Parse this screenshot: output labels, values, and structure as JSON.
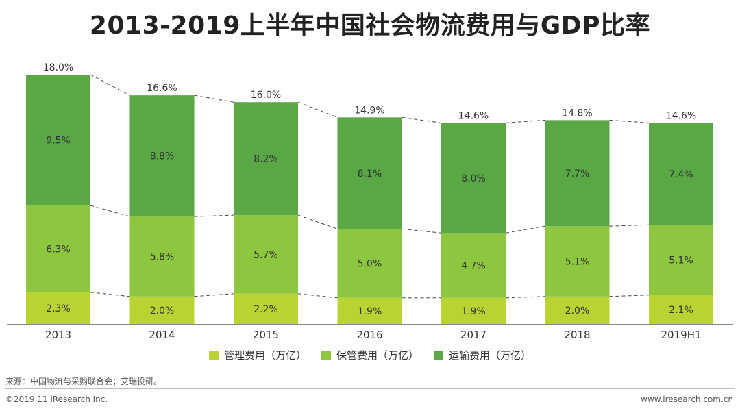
{
  "title": "2013-2019上半年中国社会物流费用与GDP比率",
  "chart_data": {
    "type": "bar",
    "stacked": true,
    "title": "2013-2019上半年中国社会物流费用与GDP比率",
    "categories": [
      "2013",
      "2014",
      "2015",
      "2016",
      "2017",
      "2018",
      "2019H1"
    ],
    "series": [
      {
        "name": "管理费用（万亿）",
        "color": "#b8d432",
        "values": [
          2.3,
          2.0,
          2.2,
          1.9,
          1.9,
          2.0,
          2.1
        ],
        "labels": [
          "2.3%",
          "2.0%",
          "2.2%",
          "1.9%",
          "1.9%",
          "2.0%",
          "2.1%"
        ]
      },
      {
        "name": "保管费用（万亿）",
        "color": "#8dc63f",
        "values": [
          6.3,
          5.8,
          5.7,
          5.0,
          4.7,
          5.1,
          5.1
        ],
        "labels": [
          "6.3%",
          "5.8%",
          "5.7%",
          "5.0%",
          "4.7%",
          "5.1%",
          "5.1%"
        ]
      },
      {
        "name": "运输费用（万亿）",
        "color": "#5aa845",
        "values": [
          9.5,
          8.8,
          8.2,
          8.1,
          8.0,
          7.7,
          7.4
        ],
        "labels": [
          "9.5%",
          "8.8%",
          "8.2%",
          "8.1%",
          "8.0%",
          "7.7%",
          "7.4%"
        ]
      }
    ],
    "totals": [
      18.0,
      16.6,
      16.0,
      14.9,
      14.6,
      14.8,
      14.6
    ],
    "total_labels": [
      "18.0%",
      "16.6%",
      "16.0%",
      "14.9%",
      "14.6%",
      "14.8%",
      "14.6%"
    ],
    "ylim": [
      0,
      18.2
    ],
    "xlabel": "",
    "ylabel": "",
    "grid": false,
    "legend_position": "bottom-center"
  },
  "source": "来源：中国物流与采购联合会；艾瑞投研。",
  "footer": {
    "copyright": "©2019.11 iResearch Inc.",
    "website": "www.iresearch.com.cn"
  }
}
